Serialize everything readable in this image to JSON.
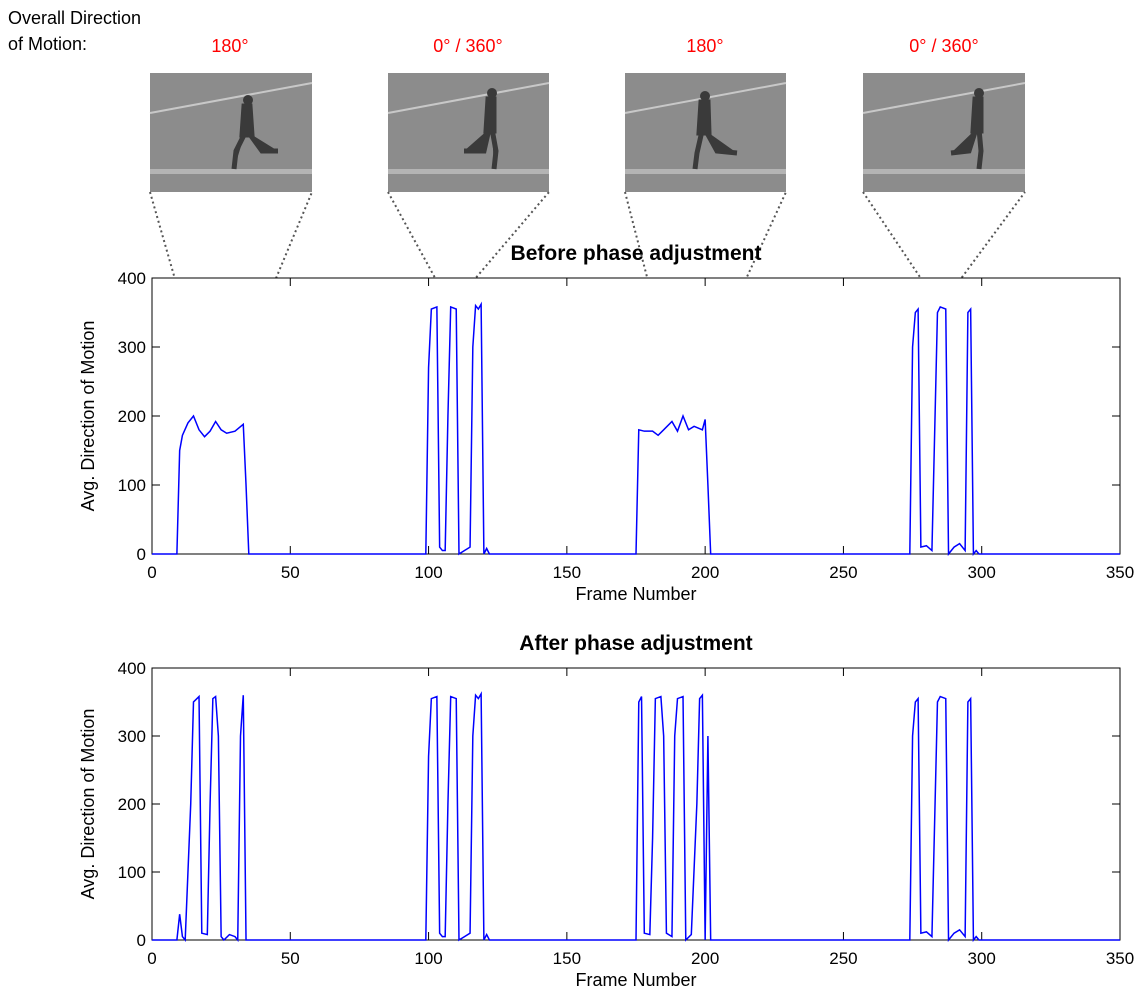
{
  "header": {
    "label_lines": [
      "Overall Direction",
      "of Motion:"
    ],
    "directions": [
      "180°",
      "0° / 360°",
      "180°",
      "0° / 360°"
    ]
  },
  "chart_data": [
    {
      "type": "line",
      "title": "Before phase adjustment",
      "xlabel": "Frame Number",
      "ylabel": "Avg. Direction of Motion",
      "xlim": [
        0,
        350
      ],
      "xticks": [
        0,
        50,
        100,
        150,
        200,
        250,
        300,
        350
      ],
      "ylim": [
        0,
        400
      ],
      "yticks": [
        0,
        100,
        200,
        300,
        400
      ],
      "x": [
        0,
        9,
        10,
        11,
        13,
        15,
        17,
        19,
        21,
        23,
        25,
        27,
        30,
        33,
        34,
        35,
        99,
        100,
        101,
        103,
        104,
        105,
        106,
        107,
        108,
        110,
        111,
        113,
        115,
        116,
        117,
        118,
        119,
        120,
        121,
        122,
        175,
        176,
        178,
        181,
        183,
        185,
        188,
        190,
        192,
        194,
        196,
        199,
        200,
        201,
        202,
        274,
        275,
        276,
        277,
        278,
        280,
        282,
        284,
        285,
        287,
        288,
        290,
        292,
        294,
        295,
        296,
        297,
        298,
        299,
        350
      ],
      "series": [
        {
          "color": "#0000ff",
          "values": [
            0,
            0,
            150,
            172,
            190,
            200,
            180,
            170,
            178,
            192,
            180,
            175,
            178,
            188,
            100,
            0,
            0,
            270,
            355,
            358,
            10,
            5,
            5,
            200,
            358,
            355,
            0,
            5,
            10,
            300,
            360,
            355,
            362,
            0,
            8,
            0,
            0,
            180,
            178,
            178,
            172,
            180,
            192,
            178,
            200,
            180,
            185,
            180,
            195,
            100,
            0,
            0,
            300,
            350,
            355,
            10,
            12,
            5,
            350,
            358,
            355,
            0,
            10,
            15,
            5,
            350,
            355,
            0,
            5,
            0,
            0
          ]
        }
      ]
    },
    {
      "type": "line",
      "title": "After phase adjustment",
      "xlabel": "Frame Number",
      "ylabel": "Avg. Direction of Motion",
      "xlim": [
        0,
        350
      ],
      "xticks": [
        0,
        50,
        100,
        150,
        200,
        250,
        300,
        350
      ],
      "ylim": [
        0,
        400
      ],
      "yticks": [
        0,
        100,
        200,
        300,
        400
      ],
      "x": [
        0,
        9,
        10,
        11,
        12,
        14,
        15,
        17,
        18,
        20,
        21,
        22,
        23,
        24,
        25,
        26,
        28,
        30,
        31,
        32,
        33,
        34,
        99,
        100,
        101,
        103,
        104,
        105,
        106,
        107,
        108,
        110,
        111,
        113,
        115,
        116,
        117,
        118,
        119,
        120,
        121,
        122,
        175,
        176,
        177,
        178,
        180,
        181,
        182,
        184,
        185,
        186,
        188,
        189,
        190,
        192,
        193,
        195,
        197,
        198,
        199,
        200,
        201,
        202,
        274,
        275,
        276,
        277,
        278,
        280,
        282,
        284,
        285,
        287,
        288,
        290,
        292,
        294,
        295,
        296,
        297,
        298,
        299,
        350
      ],
      "series": [
        {
          "color": "#0000ff",
          "values": [
            0,
            0,
            38,
            5,
            0,
            200,
            350,
            358,
            10,
            8,
            200,
            355,
            358,
            300,
            5,
            0,
            8,
            5,
            0,
            300,
            360,
            0,
            0,
            270,
            355,
            358,
            10,
            5,
            5,
            200,
            358,
            355,
            0,
            5,
            10,
            300,
            360,
            355,
            362,
            0,
            8,
            0,
            0,
            350,
            358,
            10,
            8,
            150,
            355,
            358,
            300,
            10,
            5,
            300,
            355,
            358,
            0,
            8,
            200,
            355,
            360,
            0,
            300,
            0,
            0,
            300,
            350,
            355,
            10,
            12,
            5,
            350,
            358,
            355,
            0,
            10,
            15,
            5,
            350,
            355,
            0,
            5,
            0,
            0
          ]
        }
      ]
    }
  ]
}
